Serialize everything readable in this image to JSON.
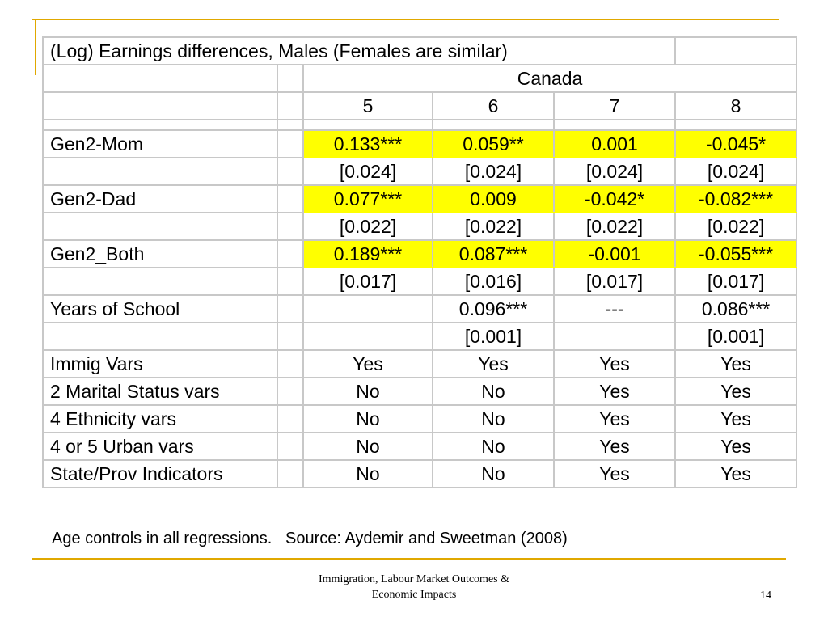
{
  "table": {
    "title": "(Log) Earnings differences, Males (Females are similar)",
    "country": "Canada",
    "columns": [
      "5",
      "6",
      "7",
      "8"
    ],
    "rows": [
      {
        "label": "Gen2-Mom",
        "values": [
          "0.133***",
          "0.059**",
          "0.001",
          "-0.045*"
        ],
        "highlight": true
      },
      {
        "label": "",
        "values": [
          "[0.024]",
          "[0.024]",
          "[0.024]",
          "[0.024]"
        ],
        "highlight": false
      },
      {
        "label": "Gen2-Dad",
        "values": [
          "0.077***",
          "0.009",
          "-0.042*",
          "-0.082***"
        ],
        "highlight": true
      },
      {
        "label": "",
        "values": [
          "[0.022]",
          "[0.022]",
          "[0.022]",
          "[0.022]"
        ],
        "highlight": false
      },
      {
        "label": "Gen2_Both",
        "values": [
          "0.189***",
          "0.087***",
          "-0.001",
          "-0.055***"
        ],
        "highlight": true
      },
      {
        "label": "",
        "values": [
          "[0.017]",
          "[0.016]",
          "[0.017]",
          "[0.017]"
        ],
        "highlight": false
      },
      {
        "label": "Years of School",
        "values": [
          "",
          "0.096***",
          "---",
          "0.086***"
        ],
        "highlight": false
      },
      {
        "label": "",
        "values": [
          "",
          "[0.001]",
          "",
          "[0.001]"
        ],
        "highlight": false
      },
      {
        "label": "Immig Vars",
        "values": [
          "Yes",
          "Yes",
          "Yes",
          "Yes"
        ],
        "highlight": false
      },
      {
        "label": "2 Marital Status vars",
        "values": [
          "No",
          "No",
          "Yes",
          "Yes"
        ],
        "highlight": false
      },
      {
        "label": "4 Ethnicity vars",
        "values": [
          "No",
          "No",
          "Yes",
          "Yes"
        ],
        "highlight": false
      },
      {
        "label": "4 or 5 Urban vars",
        "values": [
          "No",
          "No",
          "Yes",
          "Yes"
        ],
        "highlight": false
      },
      {
        "label": "State/Prov Indicators",
        "values": [
          "No",
          "No",
          "Yes",
          "Yes"
        ],
        "highlight": false
      }
    ]
  },
  "note": "Age controls in all regressions.   Source: Aydemir and Sweetman (2008)",
  "footer": {
    "line1": "Immigration, Labour Market Outcomes &",
    "line2": "Economic Impacts",
    "page_number": "14"
  },
  "colors": {
    "accent_rule": "#e0a800",
    "highlight": "#ffff00",
    "grid": "#c8c8c8"
  }
}
